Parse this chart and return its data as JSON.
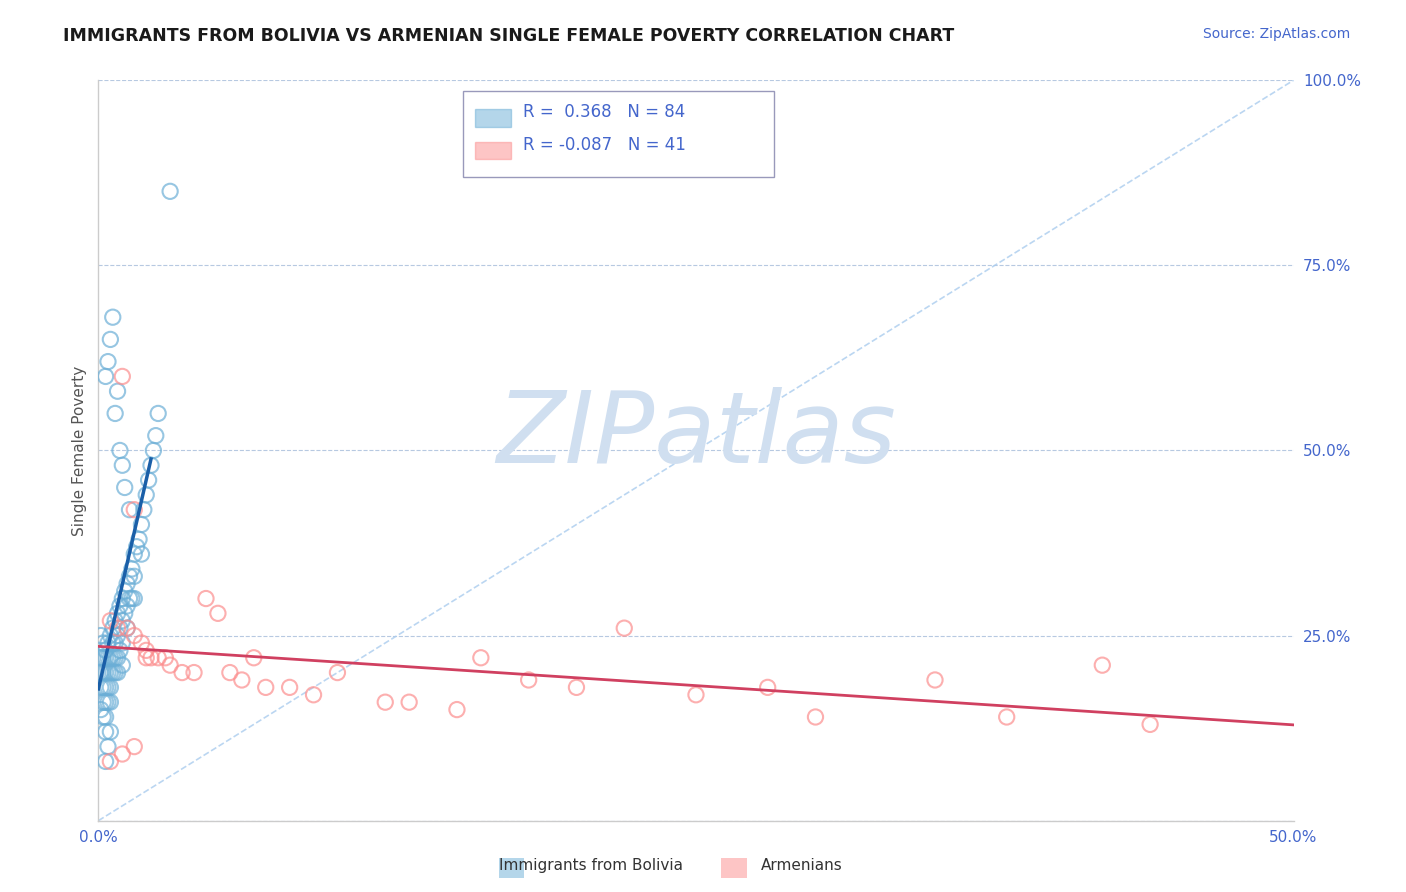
{
  "title": "IMMIGRANTS FROM BOLIVIA VS ARMENIAN SINGLE FEMALE POVERTY CORRELATION CHART",
  "source": "Source: ZipAtlas.com",
  "ylabel": "Single Female Poverty",
  "xlim": [
    0.0,
    0.5
  ],
  "ylim": [
    0.0,
    1.0
  ],
  "xticks": [
    0.0,
    0.1,
    0.2,
    0.3,
    0.4,
    0.5
  ],
  "xtick_labels": [
    "0.0%",
    "",
    "",
    "",
    "",
    "50.0%"
  ],
  "ytick_labels_right": [
    "",
    "25.0%",
    "50.0%",
    "75.0%",
    "100.0%"
  ],
  "yticks_right": [
    0.0,
    0.25,
    0.5,
    0.75,
    1.0
  ],
  "bolivia_color": "#6baed6",
  "armenian_color": "#fc8d8d",
  "bolivia_r": 0.368,
  "bolivia_n": 84,
  "armenian_r": -0.087,
  "armenian_n": 41,
  "bolivia_line_color": "#1a5fa8",
  "armenian_line_color": "#d04060",
  "watermark": "ZIPatlas",
  "watermark_color": "#d0dff0",
  "bg_color": "#ffffff",
  "grid_color": "#b0c4de",
  "title_color": "#1a1a1a",
  "tick_label_color": "#4466cc",
  "ylabel_color": "#555555",
  "legend_box_color": "#aaaacc",
  "diag_color": "#aaccee"
}
